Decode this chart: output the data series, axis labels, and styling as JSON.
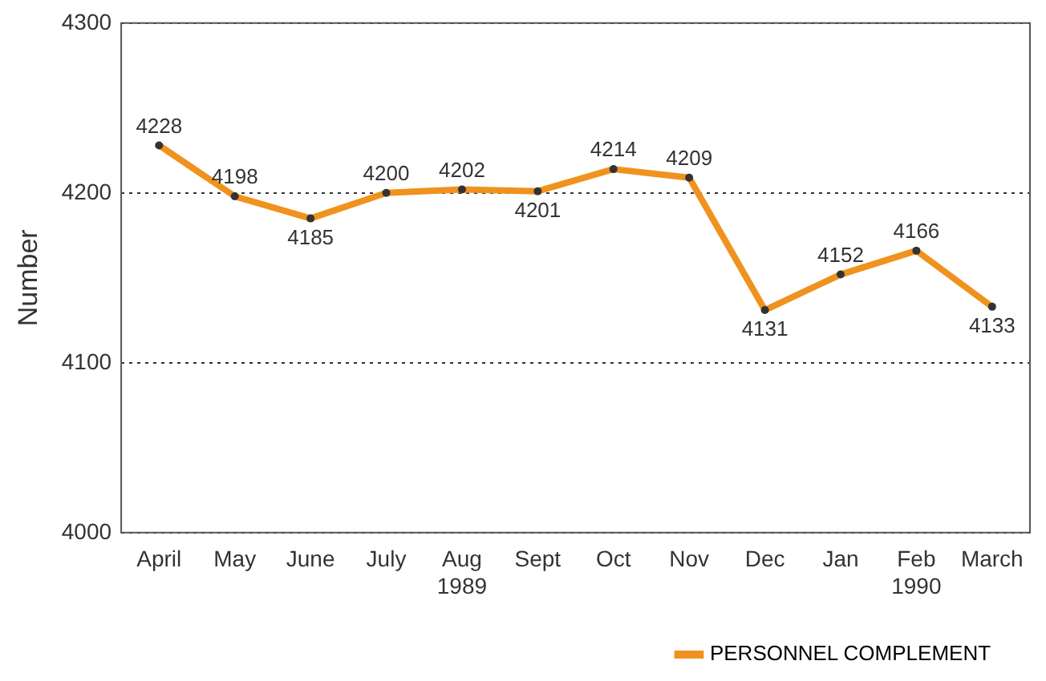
{
  "chart_data": {
    "type": "line",
    "ylabel": "Number",
    "categories": [
      "April",
      "May",
      "June",
      "July",
      "Aug\n1989",
      "Sept",
      "Oct",
      "Nov",
      "Dec",
      "Jan",
      "Feb\n1990",
      "March"
    ],
    "series": [
      {
        "name": "PERSONNEL COMPLEMENT",
        "color": "#f0921e",
        "values": [
          4228,
          4198,
          4185,
          4200,
          4202,
          4201,
          4214,
          4209,
          4131,
          4152,
          4166,
          4133
        ]
      }
    ],
    "ylim": [
      4000,
      4300
    ],
    "yticks": [
      4000,
      4100,
      4200,
      4300
    ],
    "grid": "y",
    "legend": "bottom right",
    "marker": "circle",
    "line_style": "solid",
    "data_labels": true
  }
}
